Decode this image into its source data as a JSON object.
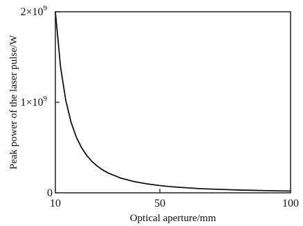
{
  "chart_data": {
    "type": "line",
    "xlabel": "Optical aperture/mm",
    "ylabel": "Peak power of the laser pulse/W",
    "xlim": [
      10,
      100
    ],
    "ylim": [
      0,
      2000000000
    ],
    "x_ticks": [
      {
        "value": 10,
        "label": "10"
      },
      {
        "value": 50,
        "label": "50"
      },
      {
        "value": 100,
        "label": "100"
      }
    ],
    "y_ticks": [
      {
        "value": 0,
        "label": "0",
        "base": "",
        "exp": ""
      },
      {
        "value": 1000000000,
        "label": "",
        "base": "1×10",
        "exp": "9"
      },
      {
        "value": 2000000000,
        "label": "",
        "base": "2×10",
        "exp": "9"
      }
    ],
    "grid": false,
    "series": [
      {
        "x": [
          10,
          12,
          14,
          16,
          18,
          20,
          22,
          24,
          26,
          28,
          30,
          35,
          40,
          45,
          50,
          55,
          60,
          65,
          70,
          75,
          80,
          85,
          90,
          95,
          100
        ],
        "values": [
          2000000000,
          1388000000,
          1020000000,
          781000000,
          617000000,
          500000000,
          413000000,
          347000000,
          296000000,
          255000000,
          222000000,
          163000000,
          125000000,
          99000000,
          80000000,
          66000000,
          56000000,
          47000000,
          41000000,
          36000000,
          31000000,
          28000000,
          25000000,
          22000000,
          20000000
        ]
      }
    ]
  }
}
